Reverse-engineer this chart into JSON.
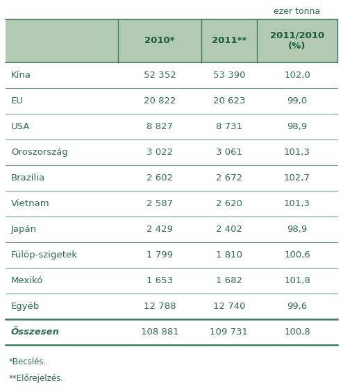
{
  "header_bg": "#b2c9b2",
  "header_text_color": "#1a5c3a",
  "row_line_color": "#3a7a5a",
  "text_color": "#2e6b4f",
  "unit_text": "ezer tonna",
  "col_headers": [
    "",
    "2010*",
    "2011**",
    "2011/2010\n(%)"
  ],
  "rows": [
    [
      "Kína",
      "52 352",
      "53 390",
      "102,0"
    ],
    [
      "EU",
      "20 822",
      "20 623",
      "99,0"
    ],
    [
      "USA",
      "8 827",
      "8 731",
      "98,9"
    ],
    [
      "Oroszország",
      "3 022",
      "3 061",
      "101,3"
    ],
    [
      "Brazília",
      "2 602",
      "2 672",
      "102,7"
    ],
    [
      "Vietnam",
      "2 587",
      "2 620",
      "101,3"
    ],
    [
      "Japán",
      "2 429",
      "2 402",
      "98,9"
    ],
    [
      "Fülöp-szigetek",
      "1 799",
      "1 810",
      "100,6"
    ],
    [
      "Mexikó",
      "1 653",
      "1 682",
      "101,8"
    ],
    [
      "Egyéb",
      "12 788",
      "12 740",
      "99,6"
    ]
  ],
  "total_row": [
    "Összesen",
    "108 881",
    "109 731",
    "100,8"
  ],
  "footnotes": [
    "*Becslés.",
    "**Előrejelzés."
  ],
  "figsize": [
    4.94,
    5.62
  ],
  "dpi": 100
}
